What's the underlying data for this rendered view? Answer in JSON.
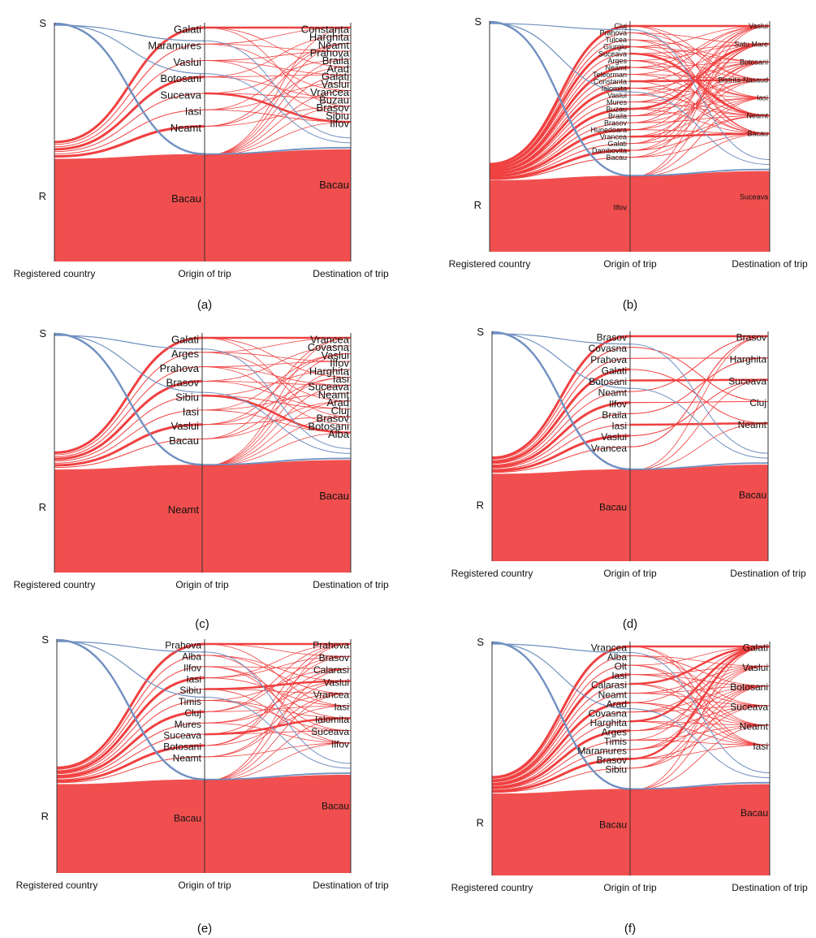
{
  "colors": {
    "r_flow": "#f04040",
    "s_flow": "#7090c0",
    "axis": "#333333",
    "label": "#111111"
  },
  "chart_data": [
    {
      "panel": "(a)",
      "type": "alluvial",
      "axes": [
        "Registered country",
        "Origin of trip",
        "Destination of trip"
      ],
      "registered": [
        "S",
        "R"
      ],
      "origin": [
        "Galati",
        "Maramures",
        "Vaslui",
        "Botosani",
        "Suceava",
        "Iasi",
        "Neamt",
        "Bacau"
      ],
      "destination": [
        "Constanta",
        "Harghita",
        "Neamt",
        "Prahova",
        "Braila",
        "Arad",
        "Galati",
        "Vaslui",
        "Vrancea",
        "Buzau",
        "Brasov",
        "Sibiu",
        "Ilfov",
        "Bacau"
      ],
      "r_share": 0.5,
      "s_share": 0.02
    },
    {
      "panel": "(b)",
      "type": "alluvial",
      "axes": [
        "Registered country",
        "Origin of trip",
        "Destination of trip"
      ],
      "registered": [
        "S",
        "R"
      ],
      "origin": [
        "Cluj",
        "Prahova",
        "Tulcea",
        "Giurgiu",
        "Suceava",
        "Arges",
        "Neamt",
        "Teleorman",
        "Constanta",
        "Ialomita",
        "Vaslui",
        "Mures",
        "Buzau",
        "Braila",
        "Brasov",
        "Hunedoara",
        "Vrancea",
        "Galati",
        "Dambovita",
        "Bacau",
        "Ilfov"
      ],
      "destination": [
        "Vaslui",
        "Satu Mare",
        "Botosani",
        "Bistrita-Nasaud",
        "Iasi",
        "Neamt",
        "Bacau",
        "Suceava"
      ],
      "r_share": 0.38,
      "s_share": 0.02
    },
    {
      "panel": "(c)",
      "type": "alluvial",
      "axes": [
        "Registered country",
        "Origin of trip",
        "Destination of trip"
      ],
      "registered": [
        "S",
        "R"
      ],
      "origin": [
        "Galati",
        "Arges",
        "Prahova",
        "Brasov",
        "Sibiu",
        "Iasi",
        "Vaslui",
        "Bacau",
        "Neamt"
      ],
      "destination": [
        "Vrancea",
        "Covasna",
        "Vaslui",
        "Ilfov",
        "Harghita",
        "Iasi",
        "Suceava",
        "Neamt",
        "Arad",
        "Cluj",
        "Brasov",
        "Botosani",
        "Alba",
        "Bacau"
      ],
      "r_share": 0.5,
      "s_share": 0.02
    },
    {
      "panel": "(d)",
      "type": "alluvial",
      "axes": [
        "Registered country",
        "Origin of trip",
        "Destination of trip"
      ],
      "registered": [
        "S",
        "R"
      ],
      "origin": [
        "Brasov",
        "Covasna",
        "Prahova",
        "Galati",
        "Botosani",
        "Neamt",
        "Ilfov",
        "Braila",
        "Iasi",
        "Vaslui",
        "Vrancea",
        "Bacau"
      ],
      "destination": [
        "Brasov",
        "Harghita",
        "Suceava",
        "Cluj",
        "Neamt",
        "Bacau"
      ],
      "r_share": 0.45,
      "s_share": 0.02
    },
    {
      "panel": "(e)",
      "type": "alluvial",
      "axes": [
        "Registered country",
        "Origin of trip",
        "Destination of trip"
      ],
      "registered": [
        "S",
        "R"
      ],
      "origin": [
        "Prahova",
        "Alba",
        "Ilfov",
        "Iasi",
        "Sibiu",
        "Timis",
        "Cluj",
        "Mures",
        "Suceava",
        "Botosani",
        "Neamt",
        "Bacau"
      ],
      "destination": [
        "Prahova",
        "Brasov",
        "Calarasi",
        "Vaslui",
        "Vrancea",
        "Iasi",
        "Ialomita",
        "Suceava",
        "Ilfov",
        "Bacau"
      ],
      "r_share": 0.45,
      "s_share": 0.02
    },
    {
      "panel": "(f)",
      "type": "alluvial",
      "axes": [
        "Registered country",
        "Origin of trip",
        "Destination of trip"
      ],
      "registered": [
        "S",
        "R"
      ],
      "origin": [
        "Vrancea",
        "Alba",
        "Olt",
        "Iasi",
        "Calarasi",
        "Neamt",
        "Arad",
        "Covasna",
        "Harghita",
        "Arges",
        "Timis",
        "Maramures",
        "Brasov",
        "Sibiu",
        "Bacau"
      ],
      "destination": [
        "Galati",
        "Vaslui",
        "Botosani",
        "Suceava",
        "Neamt",
        "Iasi",
        "Bacau"
      ],
      "r_share": 0.42,
      "s_share": 0.02
    }
  ]
}
